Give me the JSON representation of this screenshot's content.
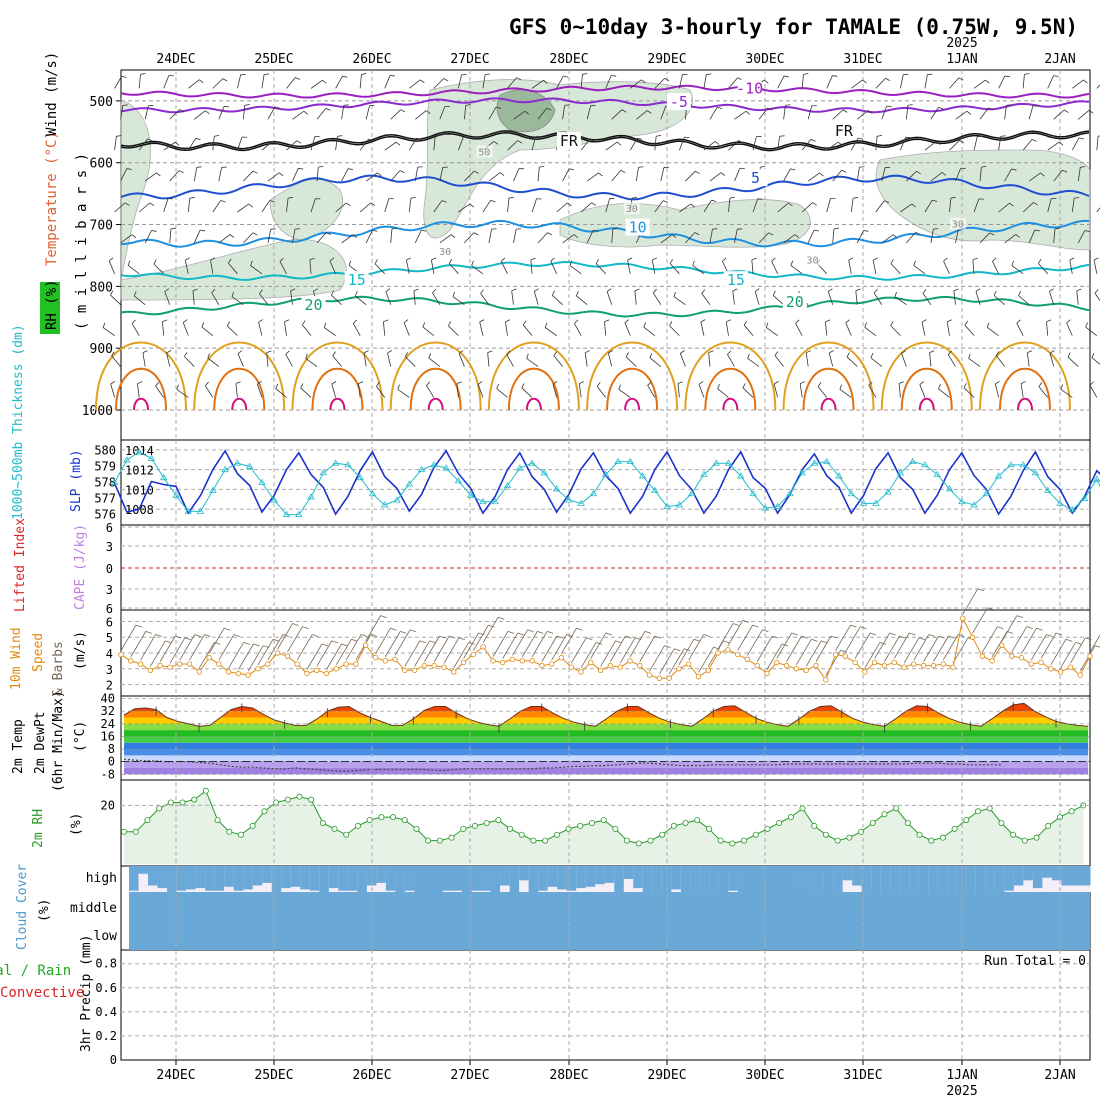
{
  "title": "GFS 0~10day 3-hourly for TAMALE (0.75W, 9.5N)",
  "colors": {
    "temp_label": "#e06030",
    "wind_label": "#222222",
    "rh_fill": "#cfe3cf",
    "rh_dark": "#9ab89a",
    "iso_m10": "#9a1fc0",
    "iso_m5": "#8a2ad0",
    "iso_fr": "#111111",
    "iso_5": "#1f4fd0",
    "iso_10": "#1e90e0",
    "iso_15": "#10b8c8",
    "iso_20": "#10a070",
    "iso_25": "#e0a020",
    "iso_30": "#e07010",
    "iso_35": "#d01080",
    "slp": "#1a33cc",
    "thickness": "#22bbcc",
    "lifted": "#dd2222",
    "wind10": "#e08a10",
    "rh2m": "#2a9a2a",
    "cloud": "#6aa8d8",
    "cloud_gap": "#f3eef8"
  },
  "chart_data": [
    {
      "type": "line",
      "panel": "upper-air",
      "xlabels_top": [
        "24DEC",
        "25DEC",
        "26DEC",
        "27DEC",
        "28DEC",
        "29DEC",
        "30DEC",
        "31DEC",
        "1JAN",
        "2JAN"
      ],
      "year_top": "2025",
      "ylabel_left": [
        "RH (%)",
        "Temperature (°C)",
        "Wind (m/s)"
      ],
      "ylabel_units": "( m i l l i b a r s )",
      "yticks": [
        500,
        600,
        700,
        800,
        900,
        1000
      ],
      "ylim": [
        450,
        1000
      ],
      "isotherm_labels": [
        {
          "text": "-10",
          "x": 3.42,
          "p": 480
        },
        {
          "text": "-5",
          "x": 3.06,
          "p": 502
        },
        {
          "text": "FR",
          "x": 2.5,
          "p": 565
        },
        {
          "text": "FR",
          "x": 3.9,
          "p": 549
        },
        {
          "text": "5",
          "x": 3.45,
          "p": 625
        },
        {
          "text": "10",
          "x": 2.85,
          "p": 705
        },
        {
          "text": "15",
          "x": 1.42,
          "p": 790
        },
        {
          "text": "15",
          "x": 3.35,
          "p": 790
        },
        {
          "text": "20",
          "x": 1.2,
          "p": 830
        },
        {
          "text": "20",
          "x": 3.65,
          "p": 825
        },
        {
          "text": "50",
          "x": 2.07,
          "p": 580
        },
        {
          "text": "30",
          "x": 2.82,
          "p": 672
        },
        {
          "text": "30",
          "x": 1.87,
          "p": 741
        },
        {
          "text": "30",
          "x": 3.74,
          "p": 755
        },
        {
          "text": "30",
          "x": 4.48,
          "p": 697
        }
      ]
    },
    {
      "type": "line",
      "panel": "slp-thickness",
      "ylabel_left": "1000~500mb Thickness (dm)",
      "ylabel_right": "SLP (mb)",
      "yticks_thickness": [
        576,
        577,
        578,
        579,
        580
      ],
      "yticks_slp": [
        1008,
        1010,
        1012,
        1014
      ],
      "series": [
        {
          "name": "SLP",
          "values": [
            1010.6,
            1007.7,
            1008.0,
            1010.8,
            1010.5,
            1010.3,
            1007.6,
            1009.4,
            1012.0,
            1013.9,
            1011.6,
            1010.4,
            1007.7,
            1009.4,
            1012.0,
            1013.7,
            1011.5,
            1010.2,
            1007.5,
            1009.3,
            1011.9,
            1013.8,
            1011.3,
            1010.1,
            1007.8,
            1009.5,
            1012.2,
            1013.9,
            1011.6,
            1010.1,
            1007.6,
            1009.3,
            1012.0,
            1013.7,
            1011.3,
            1010.0,
            1007.7,
            1009.5,
            1012.1,
            1013.7,
            1011.4,
            1010.1,
            1007.6,
            1009.3,
            1012.0,
            1013.8,
            1011.4,
            1010.0,
            1007.6,
            1009.3,
            1012.0,
            1013.8,
            1011.2,
            1010.1,
            1007.6,
            1009.5,
            1012.0,
            1013.6,
            1011.4,
            1010.2,
            1007.6,
            1009.4,
            1012.1,
            1013.7,
            1011.2,
            1010.0,
            1007.6,
            1009.4,
            1012.0,
            1013.7,
            1011.4,
            1010.0,
            1007.5,
            1009.3,
            1011.9,
            1013.8,
            1011.3,
            1010.0,
            1007.6,
            1009.3,
            1011.9,
            1010.7
          ]
        },
        {
          "name": "Thickness",
          "values": [
            578.0,
            579.4,
            579.9,
            579.5,
            578.3,
            577.2,
            576.2,
            576.2,
            577.5,
            578.8,
            579.2,
            579.0,
            578.0,
            576.9,
            576.0,
            576.0,
            577.1,
            578.6,
            579.2,
            579.1,
            578.3,
            577.3,
            576.6,
            576.9,
            577.9,
            578.8,
            579.1,
            578.9,
            578.1,
            577.2,
            576.8,
            576.8,
            577.8,
            578.9,
            579.2,
            578.6,
            577.6,
            576.9,
            576.7,
            577.3,
            578.5,
            579.3,
            579.3,
            578.4,
            577.5,
            576.5,
            576.6,
            577.3,
            578.5,
            579.2,
            579.2,
            578.4,
            577.3,
            576.4,
            576.5,
            577.3,
            578.6,
            579.2,
            579.3,
            578.4,
            577.3,
            576.7,
            576.7,
            577.4,
            578.6,
            579.3,
            579.1,
            578.5,
            577.6,
            576.8,
            576.6,
            577.3,
            578.4,
            579.1,
            579.1,
            578.6,
            577.5,
            576.7,
            576.3,
            577.0,
            578.2,
            576.5
          ]
        }
      ]
    },
    {
      "type": "line",
      "panel": "stability",
      "ylabel_left": "Lifted Index",
      "ylabel_right": "CAPE (J/kg)",
      "yticks": [
        "6",
        "3",
        "0",
        "3",
        "6"
      ],
      "values_lifted": []
    },
    {
      "type": "line",
      "panel": "wind10m",
      "ylabel_left": "10m Wind",
      "ylabel_mid": "Speed",
      "ylabel_right": "& Barbs",
      "ylabel_units": "(m/s)",
      "yticks": [
        2,
        3,
        4,
        5,
        6
      ],
      "series": [
        {
          "name": "10m Wind Speed",
          "values": [
            3.9,
            3.5,
            3.3,
            2.9,
            3.2,
            3.1,
            3.3,
            3.3,
            2.8,
            3.7,
            3.3,
            2.8,
            2.7,
            2.6,
            3.0,
            3.3,
            4.0,
            3.8,
            3.3,
            2.7,
            2.9,
            2.7,
            3.0,
            3.3,
            3.3,
            4.5,
            3.7,
            3.5,
            3.6,
            2.9,
            2.9,
            3.2,
            3.2,
            3.1,
            2.8,
            3.4,
            3.9,
            4.4,
            3.5,
            3.4,
            3.6,
            3.5,
            3.5,
            3.2,
            3.3,
            3.7,
            3.1,
            2.8,
            3.4,
            2.9,
            3.2,
            3.1,
            3.5,
            3.2,
            2.6,
            2.4,
            2.4,
            3.0,
            3.3,
            2.5,
            2.9,
            4.0,
            4.2,
            3.9,
            3.6,
            3.2,
            2.7,
            3.4,
            3.2,
            3.0,
            2.9,
            3.2,
            2.3,
            3.9,
            3.8,
            3.4,
            2.8,
            3.4,
            3.2,
            3.4,
            3.1,
            3.3,
            3.2,
            3.2,
            3.3,
            3.1,
            6.2,
            5.0,
            3.8,
            3.5,
            4.5,
            3.8,
            3.7,
            3.3,
            3.4,
            3.0,
            2.8,
            3.1,
            2.6,
            3.8
          ]
        }
      ]
    },
    {
      "type": "area",
      "panel": "temperature2m",
      "ylabel_left": [
        "2m Temp",
        "2m DewPt",
        "(6hr Min/Max)",
        "(°C)"
      ],
      "yticks": [
        -8,
        0,
        8,
        16,
        24,
        32,
        40
      ],
      "series": [
        {
          "name": "2m Temp",
          "values": [
            29.5,
            33.5,
            34,
            33,
            28,
            25.5,
            24,
            22.5,
            23,
            28,
            33,
            35,
            34,
            30,
            26.5,
            24.5,
            23,
            23,
            27,
            32,
            34.5,
            35,
            31,
            28,
            25.5,
            23,
            23,
            27,
            32.5,
            35,
            35,
            31,
            27.5,
            25,
            23.5,
            22.5,
            27,
            32,
            35,
            35,
            31,
            27.5,
            25,
            23.5,
            22.5,
            27,
            32,
            35,
            35,
            31,
            27.5,
            25,
            23.5,
            22.5,
            27,
            32,
            35,
            35.5,
            31.5,
            27.5,
            25,
            23.5,
            22.5,
            27,
            32,
            35,
            35.5,
            31.5,
            27.5,
            25,
            23.5,
            22.5,
            27,
            32,
            35.5,
            35,
            31,
            27.5,
            25,
            23.5,
            22.5,
            27,
            32,
            36,
            37,
            32,
            28.5,
            25.5,
            24,
            23,
            22.5
          ]
        },
        {
          "name": "2m DewPt",
          "values": [
            1.5,
            1,
            0.5,
            0.5,
            0,
            0,
            0,
            -0.5,
            -1,
            -2,
            -3,
            -3.5,
            -3.5,
            -4,
            -4.5,
            -4.5,
            -4,
            -4.5,
            -5,
            -5.5,
            -6,
            -6,
            -5.5,
            -5,
            -5,
            -5,
            -5,
            -5,
            -5,
            -5.5,
            -5.5,
            -5,
            -4.5,
            -4.5,
            -4.5,
            -4.5,
            -4.5,
            -4.5,
            -4.5,
            -4,
            -4,
            -3.5,
            -3,
            -3,
            -2.5,
            -2.5,
            -2,
            -1.5,
            -1,
            -1,
            -1.5,
            -2,
            -2.5,
            -2.5,
            -2.5,
            -2,
            -2,
            -2,
            -2,
            -2,
            -2,
            -2,
            -1.5,
            -1.5,
            -1.5,
            -1.5,
            -1.5,
            -1.5,
            -1.5,
            -1.5,
            -1.5,
            -1.5,
            -1.5,
            -1.5,
            -1,
            -1,
            -1,
            -1.5,
            -1.5,
            -2,
            -2,
            -2,
            -2
          ]
        }
      ]
    },
    {
      "type": "area",
      "panel": "rh2m",
      "ylabel_left": "2m RH",
      "ylabel_units": "(%)",
      "yticks": [
        20
      ],
      "values": [
        11,
        11,
        15,
        19,
        21,
        21,
        22,
        25,
        15,
        11,
        10,
        13,
        18,
        21,
        22,
        23,
        22,
        14,
        12,
        10,
        13,
        15,
        16,
        16,
        15,
        12,
        8,
        8,
        9,
        12,
        13,
        14,
        15,
        12,
        10,
        8,
        8,
        10,
        12,
        13,
        14,
        15,
        12,
        8,
        7,
        8,
        10,
        13,
        14,
        15,
        12,
        8,
        7,
        8,
        10,
        12,
        14,
        16,
        19,
        13,
        10,
        8,
        9,
        11,
        14,
        17,
        19,
        14,
        10,
        8,
        9,
        12,
        15,
        18,
        19,
        14,
        10,
        8,
        9,
        13,
        16,
        18,
        20
      ]
    },
    {
      "type": "bar",
      "panel": "cloud",
      "ylabel_left": "Cloud Cover",
      "ylabel_units": "(%)",
      "levels": [
        "high",
        "middle",
        "low"
      ],
      "values_high": [
        95,
        30,
        75,
        85,
        100,
        95,
        90,
        85,
        95,
        95,
        80,
        95,
        90,
        75,
        65,
        100,
        85,
        80,
        90,
        95,
        100,
        85,
        95,
        95,
        100,
        75,
        65,
        95,
        100,
        95,
        100,
        100,
        100,
        95,
        95,
        100,
        95,
        95,
        100,
        75,
        100,
        55,
        100,
        95,
        80,
        90,
        95,
        85,
        80,
        70,
        65,
        100,
        50,
        85,
        100,
        100,
        100,
        90,
        100,
        100,
        100,
        100,
        100,
        95,
        100,
        100,
        100,
        100,
        100,
        100,
        100,
        100,
        100,
        100,
        100,
        55,
        75,
        100,
        100,
        100,
        100,
        100,
        100,
        100,
        100,
        100,
        100,
        100,
        100,
        100,
        100,
        100,
        95,
        75,
        55,
        85,
        45,
        55,
        75,
        75,
        75
      ]
    },
    {
      "type": "line",
      "panel": "precip",
      "ylabel_left": [
        "Total / Rain",
        "Convective"
      ],
      "ylabel_units": "3hr Precip (mm)",
      "yticks": [
        "0",
        "0.2",
        "0.4",
        "0.6",
        "0.8"
      ],
      "run_total": "Run Total = 0",
      "xlabels_bottom": [
        "24DEC",
        "25DEC",
        "26DEC",
        "27DEC",
        "28DEC",
        "29DEC",
        "30DEC",
        "31DEC",
        "1JAN",
        "2JAN"
      ],
      "year_bottom": "2025",
      "values": []
    }
  ]
}
